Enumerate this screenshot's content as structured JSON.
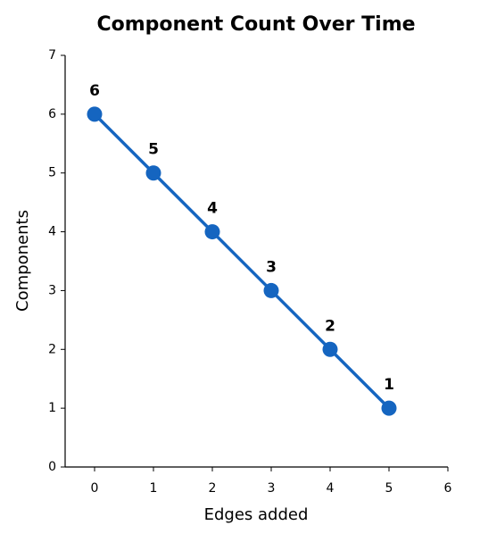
{
  "chart_data": {
    "type": "line",
    "title": "Component Count Over Time",
    "x_label": "Edges added",
    "y_label": "Components",
    "x": [
      0,
      1,
      2,
      3,
      4,
      5
    ],
    "values": [
      6,
      5,
      4,
      3,
      2,
      1
    ],
    "color": "#1565c0",
    "xlim": [
      -0.5,
      6
    ],
    "xticks": [
      0,
      1,
      2,
      3,
      4,
      5,
      6
    ],
    "ylim": [
      0,
      7
    ],
    "yticks": [
      0,
      1,
      2,
      3,
      4,
      5,
      6,
      7
    ],
    "grid": false
  }
}
